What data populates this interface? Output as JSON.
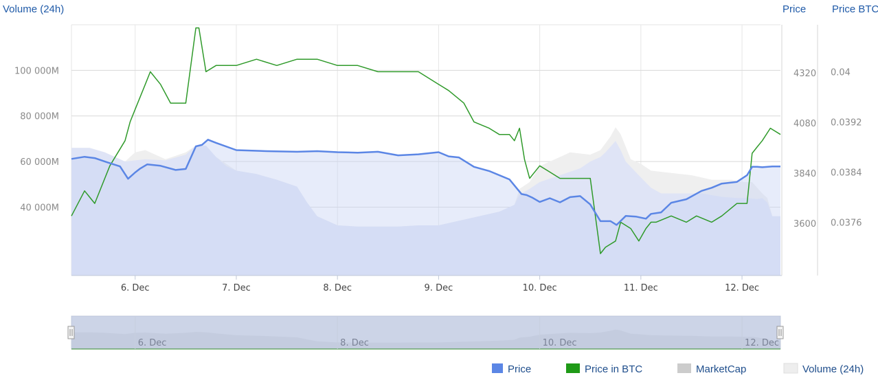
{
  "chart_data": {
    "type": "area",
    "axes": {
      "volume": {
        "title": "Volume (24h)",
        "ticks": [
          "40 000M",
          "60 000M",
          "80 000M",
          "100 000M"
        ],
        "tick_values": [
          40000,
          60000,
          80000,
          100000
        ],
        "range": [
          10000,
          120000
        ],
        "unit": "M"
      },
      "price": {
        "title": "Price",
        "ticks": [
          "3600",
          "3840",
          "4080",
          "4320"
        ],
        "tick_values": [
          3600,
          3840,
          4080,
          4320
        ],
        "range": [
          3350,
          4550
        ]
      },
      "price_btc": {
        "title": "Price BTC",
        "ticks": [
          "0.0376",
          "0.0384",
          "0.0392",
          "0.04"
        ],
        "tick_values": [
          0.0376,
          0.0384,
          0.0392,
          0.04
        ],
        "range": [
          0.03675,
          0.04075
        ]
      }
    },
    "x_ticks": [
      "6. Dec",
      "7. Dec",
      "8. Dec",
      "9. Dec",
      "10. Dec",
      "11. Dec",
      "12. Dec"
    ],
    "x_range": [
      5.37,
      12.38
    ],
    "navigator_ticks": [
      "6. Dec",
      "8. Dec",
      "10. Dec",
      "12. Dec"
    ],
    "grid": true,
    "legend_position": "bottom-right",
    "series": [
      {
        "name": "Price",
        "axis": "price",
        "color": "#5b86e5",
        "x": [
          5.37,
          5.5,
          5.6,
          5.72,
          5.85,
          5.93,
          6.0,
          6.05,
          6.12,
          6.25,
          6.4,
          6.5,
          6.6,
          6.66,
          6.72,
          6.8,
          7.0,
          7.3,
          7.6,
          7.8,
          8.0,
          8.2,
          8.4,
          8.6,
          8.8,
          9.0,
          9.1,
          9.2,
          9.35,
          9.5,
          9.7,
          9.82,
          9.87,
          9.93,
          10.0,
          10.1,
          10.2,
          10.3,
          10.4,
          10.5,
          10.6,
          10.7,
          10.76,
          10.85,
          10.95,
          11.05,
          11.1,
          11.2,
          11.3,
          11.45,
          11.6,
          11.7,
          11.8,
          11.95,
          12.05,
          12.1,
          12.15,
          12.2,
          12.3,
          12.38
        ],
        "values": [
          3908,
          3918,
          3912,
          3892,
          3872,
          3813,
          3843,
          3862,
          3882,
          3875,
          3855,
          3860,
          3968,
          3975,
          4000,
          3985,
          3950,
          3945,
          3942,
          3945,
          3940,
          3938,
          3942,
          3925,
          3930,
          3940,
          3920,
          3915,
          3870,
          3850,
          3810,
          3740,
          3735,
          3722,
          3702,
          3720,
          3700,
          3725,
          3730,
          3690,
          3610,
          3610,
          3592,
          3635,
          3632,
          3622,
          3645,
          3652,
          3698,
          3715,
          3755,
          3770,
          3790,
          3798,
          3830,
          3870,
          3870,
          3868,
          3872,
          3872
        ]
      },
      {
        "name": "Price in BTC",
        "axis": "price_btc",
        "color": "#2f9a2a",
        "x": [
          5.37,
          5.5,
          5.6,
          5.75,
          5.9,
          5.95,
          6.0,
          6.1,
          6.15,
          6.25,
          6.35,
          6.5,
          6.6,
          6.63,
          6.7,
          6.8,
          7.0,
          7.2,
          7.4,
          7.6,
          7.8,
          8.0,
          8.2,
          8.4,
          8.6,
          8.8,
          9.0,
          9.1,
          9.25,
          9.35,
          9.5,
          9.6,
          9.7,
          9.75,
          9.8,
          9.85,
          9.9,
          10.0,
          10.1,
          10.2,
          10.3,
          10.4,
          10.5,
          10.6,
          10.65,
          10.75,
          10.8,
          10.9,
          10.98,
          11.05,
          11.1,
          11.15,
          11.3,
          11.45,
          11.55,
          11.7,
          11.8,
          11.95,
          12.05,
          12.1,
          12.15,
          12.2,
          12.28,
          12.38
        ],
        "values": [
          0.0377,
          0.0381,
          0.0379,
          0.0385,
          0.0389,
          0.0392,
          0.0394,
          0.0398,
          0.04,
          0.0398,
          0.0395,
          0.0395,
          0.0407,
          0.0407,
          0.04,
          0.0401,
          0.0401,
          0.0402,
          0.0401,
          0.0402,
          0.0402,
          0.0401,
          0.0401,
          0.04,
          0.04,
          0.04,
          0.0398,
          0.0397,
          0.0395,
          0.0392,
          0.0391,
          0.039,
          0.039,
          0.0389,
          0.0391,
          0.0386,
          0.0383,
          0.0385,
          0.0384,
          0.0383,
          0.0383,
          0.0383,
          0.0383,
          0.0371,
          0.0372,
          0.0373,
          0.0376,
          0.0375,
          0.0373,
          0.0375,
          0.0376,
          0.0376,
          0.0377,
          0.0376,
          0.0377,
          0.0376,
          0.0377,
          0.0379,
          0.0379,
          0.0387,
          0.0388,
          0.0389,
          0.0391,
          0.039
        ]
      },
      {
        "name": "MarketCap",
        "axis": "price",
        "color": "#cccccc",
        "x": [],
        "values": []
      },
      {
        "name": "Volume (24h)",
        "axis": "volume",
        "color": "#e6e6e6",
        "x": [
          5.37,
          5.55,
          5.7,
          5.9,
          6.1,
          6.3,
          6.5,
          6.6,
          6.7,
          6.8,
          6.9,
          7.0,
          7.2,
          7.4,
          7.6,
          7.7,
          7.8,
          8.0,
          8.2,
          8.4,
          8.6,
          8.8,
          9.0,
          9.2,
          9.4,
          9.6,
          9.75,
          9.8,
          9.9,
          10.0,
          10.2,
          10.4,
          10.5,
          10.6,
          10.65,
          10.75,
          10.8,
          10.85,
          11.0,
          11.1,
          11.2,
          11.4,
          11.6,
          11.8,
          11.95,
          12.05,
          12.15,
          12.2,
          12.25,
          12.3,
          12.38
        ],
        "values": [
          66000,
          66000,
          64000,
          60000,
          61000,
          60500,
          63000,
          67000,
          67000,
          62000,
          58000,
          56000,
          54500,
          52000,
          49000,
          42000,
          36000,
          32000,
          31500,
          31500,
          31500,
          32000,
          32000,
          34000,
          36000,
          38000,
          41000,
          45500,
          48000,
          51000,
          54000,
          57000,
          60000,
          62000,
          64000,
          69000,
          65000,
          60000,
          53000,
          48500,
          46000,
          46000,
          46000,
          44500,
          44000,
          44000,
          43500,
          44000,
          42000,
          36000,
          36000
        ]
      }
    ],
    "volume_background": {
      "x": [
        5.37,
        5.55,
        5.7,
        5.9,
        6.0,
        6.1,
        6.3,
        6.5,
        6.6,
        6.7,
        6.8,
        7.0,
        7.2,
        7.4,
        7.6,
        7.7,
        7.8,
        8.0,
        8.2,
        8.4,
        8.6,
        8.8,
        9.0,
        9.2,
        9.4,
        9.6,
        9.75,
        9.8,
        9.9,
        10.0,
        10.2,
        10.3,
        10.5,
        10.6,
        10.7,
        10.75,
        10.8,
        10.9,
        11.0,
        11.1,
        11.3,
        11.5,
        11.7,
        11.9,
        12.0,
        12.1,
        12.2,
        12.25,
        12.3,
        12.38
      ],
      "values": [
        66000,
        66000,
        64000,
        60000,
        64000,
        65000,
        61000,
        64000,
        67000,
        66000,
        62000,
        56000,
        54500,
        52000,
        49000,
        42000,
        36000,
        32000,
        31500,
        31500,
        31500,
        32000,
        32000,
        34000,
        36000,
        38000,
        41000,
        48000,
        51000,
        58000,
        62000,
        64000,
        63000,
        65000,
        71000,
        75000,
        72000,
        61000,
        59000,
        56000,
        55000,
        54000,
        52000,
        52000,
        51000,
        51000,
        46000,
        44000,
        36000,
        36000
      ]
    }
  },
  "legend": {
    "items": [
      {
        "label": "Price",
        "color": "#5b86e5"
      },
      {
        "label": "Price in BTC",
        "color": "#1f9a17"
      },
      {
        "label": "MarketCap",
        "color": "#cccccc"
      },
      {
        "label": "Volume (24h)",
        "color": "#eeeeee"
      }
    ]
  }
}
